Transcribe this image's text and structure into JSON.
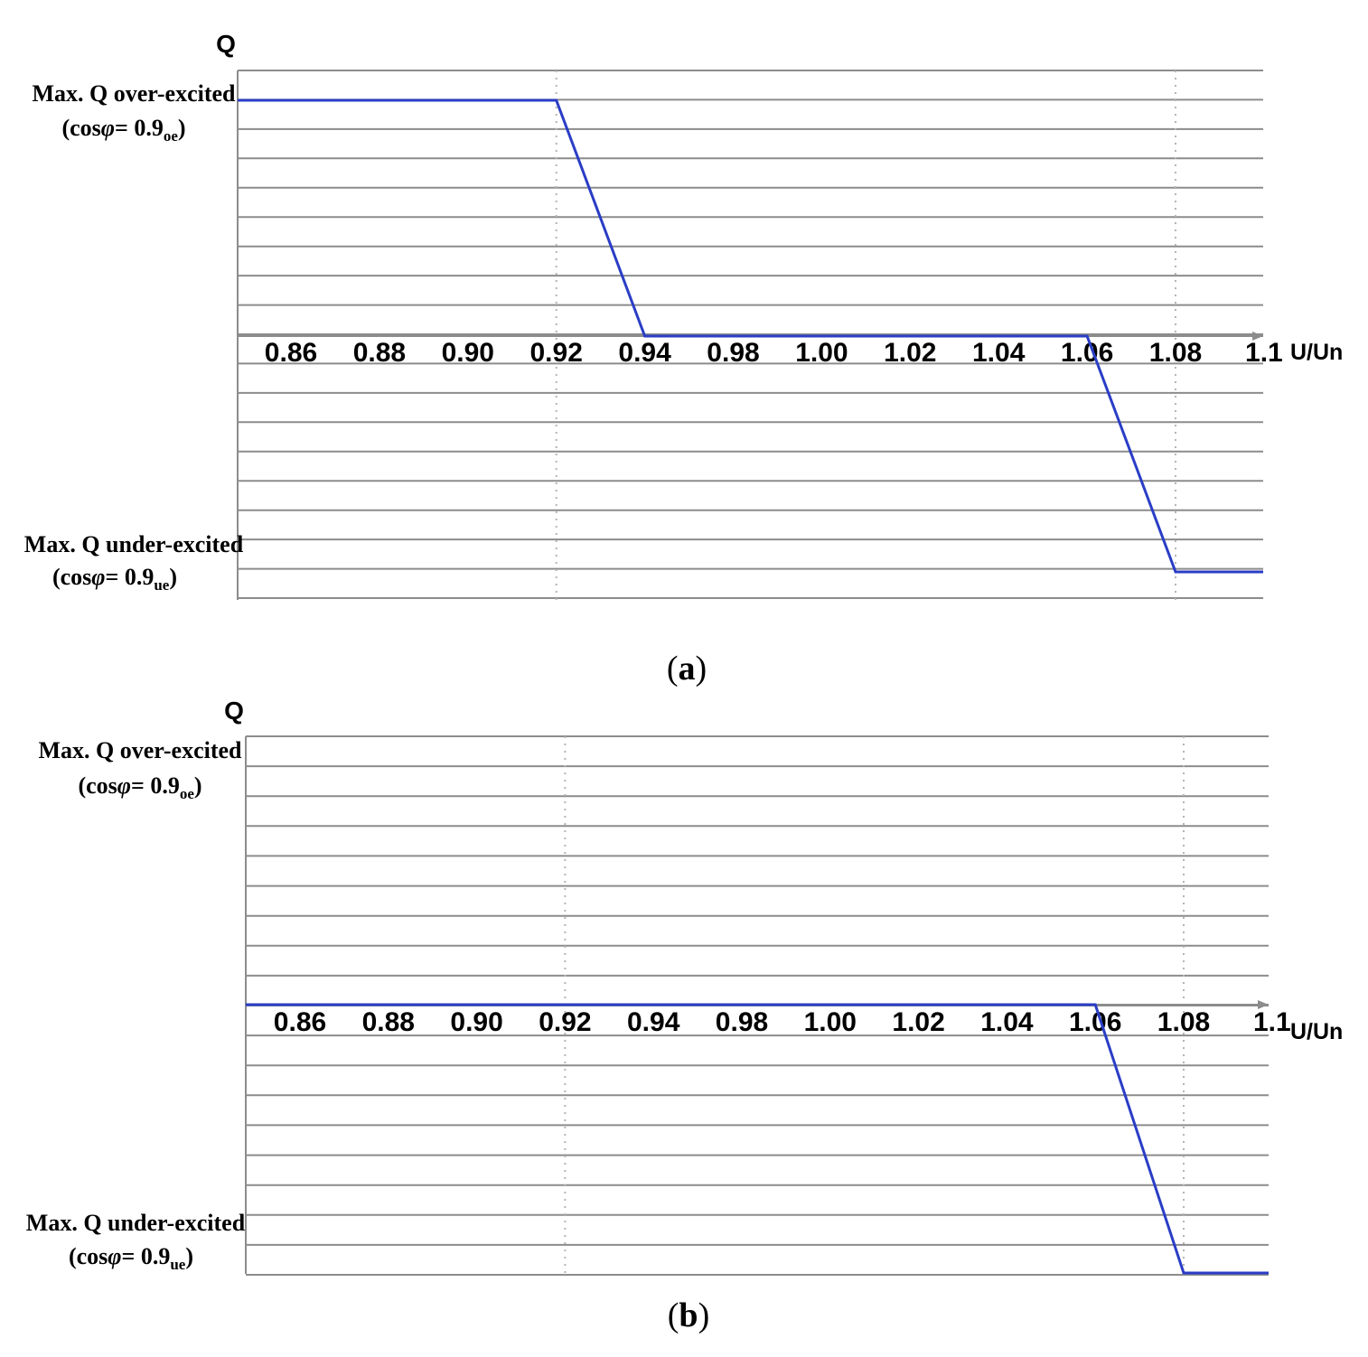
{
  "charts": [
    {
      "panel_label": "a",
      "y_axis_title": "Q",
      "x_axis_title": "U/Un",
      "top_label": "Max. Q over-excited",
      "top_sub": {
        "prefix": "(cos",
        "phi": "φ",
        "mid": "= 0.9",
        "subscript": "oe",
        "suffix": ")"
      },
      "bottom_label": "Max. Q under-excited",
      "bottom_sub": {
        "prefix": "(cos",
        "phi": "φ",
        "mid": "= 0.9",
        "subscript": "ue",
        "suffix": ")"
      }
    },
    {
      "panel_label": "b",
      "y_axis_title": "Q",
      "x_axis_title": "U/Un",
      "top_label": "Max. Q over-excited",
      "top_sub": {
        "prefix": "(cos",
        "phi": "φ",
        "mid": "= 0.9",
        "subscript": "oe",
        "suffix": ")"
      },
      "bottom_label": "Max. Q under-excited",
      "bottom_sub": {
        "prefix": "(cos",
        "phi": "φ",
        "mid": "= 0.9",
        "subscript": "ue",
        "suffix": ")"
      }
    }
  ],
  "chart_data": [
    {
      "type": "line",
      "xlabel": "U/Un",
      "ylabel": "Q",
      "x_ticks": [
        "0.86",
        "0.88",
        "0.90",
        "0.92",
        "0.94",
        "0.98",
        "1.00",
        "1.02",
        "1.04",
        "1.06",
        "1.08",
        "1.1"
      ],
      "y_ticks_top": "Max. Q over-excited",
      "y_ticks_bottom": "Max. Q under-excited",
      "ylim": [
        -1,
        1
      ],
      "series": [
        {
          "x": [
            "0.92",
            "0.94",
            "1.06",
            "1.08"
          ],
          "y": [
            1,
            0,
            0,
            -1
          ],
          "extends_left_at": 1,
          "extends_right_at": -1
        }
      ],
      "guides_at_x": [
        "0.92",
        "1.08"
      ],
      "grid": true,
      "color": "#2a3dc6"
    },
    {
      "type": "line",
      "xlabel": "U/Un",
      "ylabel": "Q",
      "x_ticks": [
        "0.86",
        "0.88",
        "0.90",
        "0.92",
        "0.94",
        "0.98",
        "1.00",
        "1.02",
        "1.04",
        "1.06",
        "1.08",
        "1.1"
      ],
      "y_ticks_top": "Max. Q over-excited",
      "y_ticks_bottom": "Max. Q under-excited",
      "ylim": [
        -1,
        1
      ],
      "series": [
        {
          "x": [
            "1.06",
            "1.08"
          ],
          "y": [
            0,
            -1
          ],
          "extends_left_at": 0,
          "extends_right_at": -1
        }
      ],
      "guides_at_x": [
        "0.92",
        "1.08"
      ],
      "grid": true,
      "color": "#2a3dc6"
    }
  ]
}
